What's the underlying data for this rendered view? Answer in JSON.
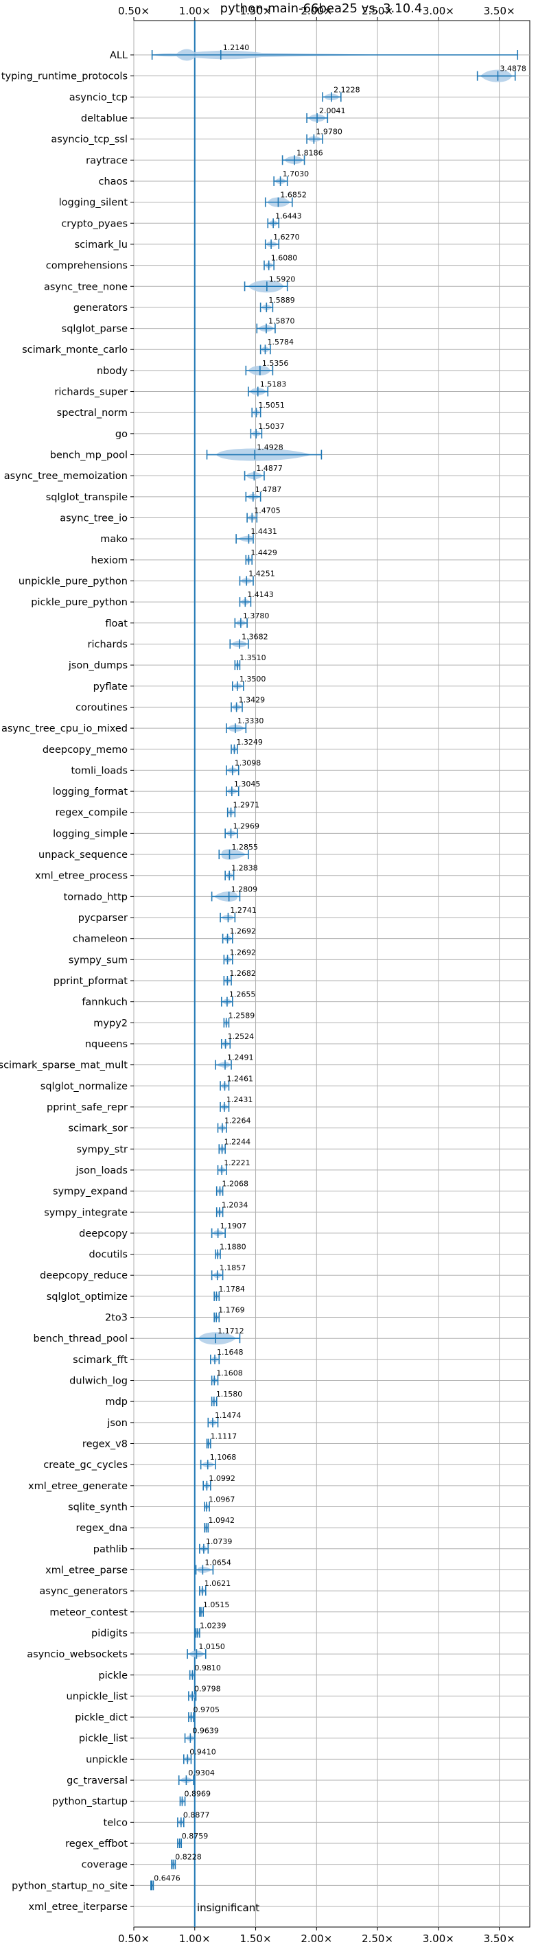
{
  "chart_data": {
    "type": "violin",
    "title": "python-main-66bea25 vs. 3.10.4",
    "xlim": [
      0.5,
      3.75
    ],
    "x_ticks": [
      0.5,
      1.0,
      1.5,
      2.0,
      2.5,
      3.0,
      3.5
    ],
    "x_tick_labels": [
      "0.50×",
      "1.00×",
      "1.50×",
      "2.00×",
      "2.50×",
      "3.00×",
      "3.50×"
    ],
    "grid": true,
    "reference_line": 1.0,
    "annotation": "insignificant",
    "color": "#1f77b4",
    "fill_color": "#aecde8",
    "benchmarks": [
      {
        "name": "ALL",
        "value": 1.214,
        "label": "1.2140",
        "lo": 0.65,
        "hi": 3.65
      },
      {
        "name": "typing_runtime_protocols",
        "value": 3.4878,
        "label": "3.4878",
        "lo": 3.32,
        "hi": 3.63
      },
      {
        "name": "asyncio_tcp",
        "value": 2.1228,
        "label": "2.1228",
        "lo": 2.05,
        "hi": 2.2
      },
      {
        "name": "deltablue",
        "value": 2.0041,
        "label": "2.0041",
        "lo": 1.92,
        "hi": 2.09
      },
      {
        "name": "asyncio_tcp_ssl",
        "value": 1.978,
        "label": "1.9780",
        "lo": 1.92,
        "hi": 2.05
      },
      {
        "name": "raytrace",
        "value": 1.8186,
        "label": "1.8186",
        "lo": 1.72,
        "hi": 1.9
      },
      {
        "name": "chaos",
        "value": 1.703,
        "label": "1.7030",
        "lo": 1.65,
        "hi": 1.76
      },
      {
        "name": "logging_silent",
        "value": 1.6852,
        "label": "1.6852",
        "lo": 1.58,
        "hi": 1.8
      },
      {
        "name": "crypto_pyaes",
        "value": 1.6443,
        "label": "1.6443",
        "lo": 1.6,
        "hi": 1.69
      },
      {
        "name": "scimark_lu",
        "value": 1.627,
        "label": "1.6270",
        "lo": 1.58,
        "hi": 1.69
      },
      {
        "name": "comprehensions",
        "value": 1.608,
        "label": "1.6080",
        "lo": 1.57,
        "hi": 1.65
      },
      {
        "name": "async_tree_none",
        "value": 1.592,
        "label": "1.5920",
        "lo": 1.41,
        "hi": 1.76
      },
      {
        "name": "generators",
        "value": 1.5889,
        "label": "1.5889",
        "lo": 1.54,
        "hi": 1.64
      },
      {
        "name": "sqlglot_parse",
        "value": 1.587,
        "label": "1.5870",
        "lo": 1.51,
        "hi": 1.66
      },
      {
        "name": "scimark_monte_carlo",
        "value": 1.5784,
        "label": "1.5784",
        "lo": 1.54,
        "hi": 1.62
      },
      {
        "name": "nbody",
        "value": 1.5356,
        "label": "1.5356",
        "lo": 1.42,
        "hi": 1.64
      },
      {
        "name": "richards_super",
        "value": 1.5183,
        "label": "1.5183",
        "lo": 1.44,
        "hi": 1.6
      },
      {
        "name": "spectral_norm",
        "value": 1.5051,
        "label": "1.5051",
        "lo": 1.47,
        "hi": 1.54
      },
      {
        "name": "go",
        "value": 1.5037,
        "label": "1.5037",
        "lo": 1.46,
        "hi": 1.55
      },
      {
        "name": "bench_mp_pool",
        "value": 1.4928,
        "label": "1.4928",
        "lo": 1.1,
        "hi": 2.04
      },
      {
        "name": "async_tree_memoization",
        "value": 1.4877,
        "label": "1.4877",
        "lo": 1.41,
        "hi": 1.57
      },
      {
        "name": "sqlglot_transpile",
        "value": 1.4787,
        "label": "1.4787",
        "lo": 1.42,
        "hi": 1.54
      },
      {
        "name": "async_tree_io",
        "value": 1.4705,
        "label": "1.4705",
        "lo": 1.43,
        "hi": 1.51
      },
      {
        "name": "mako",
        "value": 1.4431,
        "label": "1.4431",
        "lo": 1.34,
        "hi": 1.48
      },
      {
        "name": "hexiom",
        "value": 1.4429,
        "label": "1.4429",
        "lo": 1.42,
        "hi": 1.47
      },
      {
        "name": "unpickle_pure_python",
        "value": 1.4251,
        "label": "1.4251",
        "lo": 1.37,
        "hi": 1.48
      },
      {
        "name": "pickle_pure_python",
        "value": 1.4143,
        "label": "1.4143",
        "lo": 1.37,
        "hi": 1.46
      },
      {
        "name": "float",
        "value": 1.378,
        "label": "1.3780",
        "lo": 1.33,
        "hi": 1.43
      },
      {
        "name": "richards",
        "value": 1.3682,
        "label": "1.3682",
        "lo": 1.29,
        "hi": 1.44
      },
      {
        "name": "json_dumps",
        "value": 1.351,
        "label": "1.3510",
        "lo": 1.33,
        "hi": 1.37
      },
      {
        "name": "pyflate",
        "value": 1.35,
        "label": "1.3500",
        "lo": 1.31,
        "hi": 1.4
      },
      {
        "name": "coroutines",
        "value": 1.3429,
        "label": "1.3429",
        "lo": 1.3,
        "hi": 1.39
      },
      {
        "name": "async_tree_cpu_io_mixed",
        "value": 1.333,
        "label": "1.3330",
        "lo": 1.26,
        "hi": 1.42
      },
      {
        "name": "deepcopy_memo",
        "value": 1.3249,
        "label": "1.3249",
        "lo": 1.3,
        "hi": 1.35
      },
      {
        "name": "tomli_loads",
        "value": 1.3098,
        "label": "1.3098",
        "lo": 1.26,
        "hi": 1.36
      },
      {
        "name": "logging_format",
        "value": 1.3045,
        "label": "1.3045",
        "lo": 1.26,
        "hi": 1.36
      },
      {
        "name": "regex_compile",
        "value": 1.2971,
        "label": "1.2971",
        "lo": 1.27,
        "hi": 1.33
      },
      {
        "name": "logging_simple",
        "value": 1.2969,
        "label": "1.2969",
        "lo": 1.25,
        "hi": 1.35
      },
      {
        "name": "unpack_sequence",
        "value": 1.2855,
        "label": "1.2855",
        "lo": 1.2,
        "hi": 1.44
      },
      {
        "name": "xml_etree_process",
        "value": 1.2838,
        "label": "1.2838",
        "lo": 1.25,
        "hi": 1.32
      },
      {
        "name": "tornado_http",
        "value": 1.2809,
        "label": "1.2809",
        "lo": 1.14,
        "hi": 1.37
      },
      {
        "name": "pycparser",
        "value": 1.2741,
        "label": "1.2741",
        "lo": 1.21,
        "hi": 1.33
      },
      {
        "name": "chameleon",
        "value": 1.2692,
        "label": "1.2692",
        "lo": 1.23,
        "hi": 1.31
      },
      {
        "name": "sympy_sum",
        "value": 1.2692,
        "label": "1.2692",
        "lo": 1.24,
        "hi": 1.31
      },
      {
        "name": "pprint_pformat",
        "value": 1.2682,
        "label": "1.2682",
        "lo": 1.24,
        "hi": 1.3
      },
      {
        "name": "fannkuch",
        "value": 1.2655,
        "label": "1.2655",
        "lo": 1.22,
        "hi": 1.31
      },
      {
        "name": "mypy2",
        "value": 1.2589,
        "label": "1.2589",
        "lo": 1.24,
        "hi": 1.28
      },
      {
        "name": "nqueens",
        "value": 1.2524,
        "label": "1.2524",
        "lo": 1.22,
        "hi": 1.29
      },
      {
        "name": "scimark_sparse_mat_mult",
        "value": 1.2491,
        "label": "1.2491",
        "lo": 1.17,
        "hi": 1.3
      },
      {
        "name": "sqlglot_normalize",
        "value": 1.2461,
        "label": "1.2461",
        "lo": 1.21,
        "hi": 1.28
      },
      {
        "name": "pprint_safe_repr",
        "value": 1.2431,
        "label": "1.2431",
        "lo": 1.21,
        "hi": 1.28
      },
      {
        "name": "scimark_sor",
        "value": 1.2264,
        "label": "1.2264",
        "lo": 1.19,
        "hi": 1.26
      },
      {
        "name": "sympy_str",
        "value": 1.2244,
        "label": "1.2244",
        "lo": 1.2,
        "hi": 1.25
      },
      {
        "name": "json_loads",
        "value": 1.2221,
        "label": "1.2221",
        "lo": 1.19,
        "hi": 1.26
      },
      {
        "name": "sympy_expand",
        "value": 1.2068,
        "label": "1.2068",
        "lo": 1.18,
        "hi": 1.23
      },
      {
        "name": "sympy_integrate",
        "value": 1.2034,
        "label": "1.2034",
        "lo": 1.18,
        "hi": 1.23
      },
      {
        "name": "deepcopy",
        "value": 1.1907,
        "label": "1.1907",
        "lo": 1.14,
        "hi": 1.25
      },
      {
        "name": "docutils",
        "value": 1.188,
        "label": "1.1880",
        "lo": 1.17,
        "hi": 1.21
      },
      {
        "name": "deepcopy_reduce",
        "value": 1.1857,
        "label": "1.1857",
        "lo": 1.14,
        "hi": 1.23
      },
      {
        "name": "sqlglot_optimize",
        "value": 1.1784,
        "label": "1.1784",
        "lo": 1.16,
        "hi": 1.2
      },
      {
        "name": "2to3",
        "value": 1.1769,
        "label": "1.1769",
        "lo": 1.16,
        "hi": 1.2
      },
      {
        "name": "bench_thread_pool",
        "value": 1.1712,
        "label": "1.1712",
        "lo": 1.0,
        "hi": 1.37
      },
      {
        "name": "scimark_fft",
        "value": 1.1648,
        "label": "1.1648",
        "lo": 1.13,
        "hi": 1.2
      },
      {
        "name": "dulwich_log",
        "value": 1.1608,
        "label": "1.1608",
        "lo": 1.14,
        "hi": 1.19
      },
      {
        "name": "mdp",
        "value": 1.158,
        "label": "1.1580",
        "lo": 1.14,
        "hi": 1.18
      },
      {
        "name": "json",
        "value": 1.1474,
        "label": "1.1474",
        "lo": 1.11,
        "hi": 1.19
      },
      {
        "name": "regex_v8",
        "value": 1.1117,
        "label": "1.1117",
        "lo": 1.1,
        "hi": 1.13
      },
      {
        "name": "create_gc_cycles",
        "value": 1.1068,
        "label": "1.1068",
        "lo": 1.05,
        "hi": 1.17
      },
      {
        "name": "xml_etree_generate",
        "value": 1.0992,
        "label": "1.0992",
        "lo": 1.07,
        "hi": 1.13
      },
      {
        "name": "sqlite_synth",
        "value": 1.0967,
        "label": "1.0967",
        "lo": 1.08,
        "hi": 1.12
      },
      {
        "name": "regex_dna",
        "value": 1.0942,
        "label": "1.0942",
        "lo": 1.08,
        "hi": 1.11
      },
      {
        "name": "pathlib",
        "value": 1.0739,
        "label": "1.0739",
        "lo": 1.04,
        "hi": 1.11
      },
      {
        "name": "xml_etree_parse",
        "value": 1.0654,
        "label": "1.0654",
        "lo": 1.01,
        "hi": 1.15
      },
      {
        "name": "async_generators",
        "value": 1.0621,
        "label": "1.0621",
        "lo": 1.04,
        "hi": 1.09
      },
      {
        "name": "meteor_contest",
        "value": 1.0515,
        "label": "1.0515",
        "lo": 1.04,
        "hi": 1.07
      },
      {
        "name": "pidigits",
        "value": 1.0239,
        "label": "1.0239",
        "lo": 1.01,
        "hi": 1.04
      },
      {
        "name": "asyncio_websockets",
        "value": 1.015,
        "label": "1.0150",
        "lo": 0.94,
        "hi": 1.09
      },
      {
        "name": "pickle",
        "value": 0.981,
        "label": "0.9810",
        "lo": 0.96,
        "hi": 1.0
      },
      {
        "name": "unpickle_list",
        "value": 0.9798,
        "label": "0.9798",
        "lo": 0.95,
        "hi": 1.01
      },
      {
        "name": "pickle_dict",
        "value": 0.9705,
        "label": "0.9705",
        "lo": 0.95,
        "hi": 0.99
      },
      {
        "name": "pickle_list",
        "value": 0.9639,
        "label": "0.9639",
        "lo": 0.92,
        "hi": 1.0
      },
      {
        "name": "unpickle",
        "value": 0.941,
        "label": "0.9410",
        "lo": 0.91,
        "hi": 0.97
      },
      {
        "name": "gc_traversal",
        "value": 0.9304,
        "label": "0.9304",
        "lo": 0.87,
        "hi": 0.99
      },
      {
        "name": "python_startup",
        "value": 0.8969,
        "label": "0.8969",
        "lo": 0.88,
        "hi": 0.92
      },
      {
        "name": "telco",
        "value": 0.8877,
        "label": "0.8877",
        "lo": 0.86,
        "hi": 0.91
      },
      {
        "name": "regex_effbot",
        "value": 0.8759,
        "label": "0.8759",
        "lo": 0.86,
        "hi": 0.89
      },
      {
        "name": "coverage",
        "value": 0.8228,
        "label": "0.8228",
        "lo": 0.81,
        "hi": 0.84
      },
      {
        "name": "python_startup_no_site",
        "value": 0.6476,
        "label": "0.6476",
        "lo": 0.64,
        "hi": 0.66
      },
      {
        "name": "xml_etree_iterparse",
        "value": null,
        "label": "",
        "lo": null,
        "hi": null
      }
    ]
  }
}
